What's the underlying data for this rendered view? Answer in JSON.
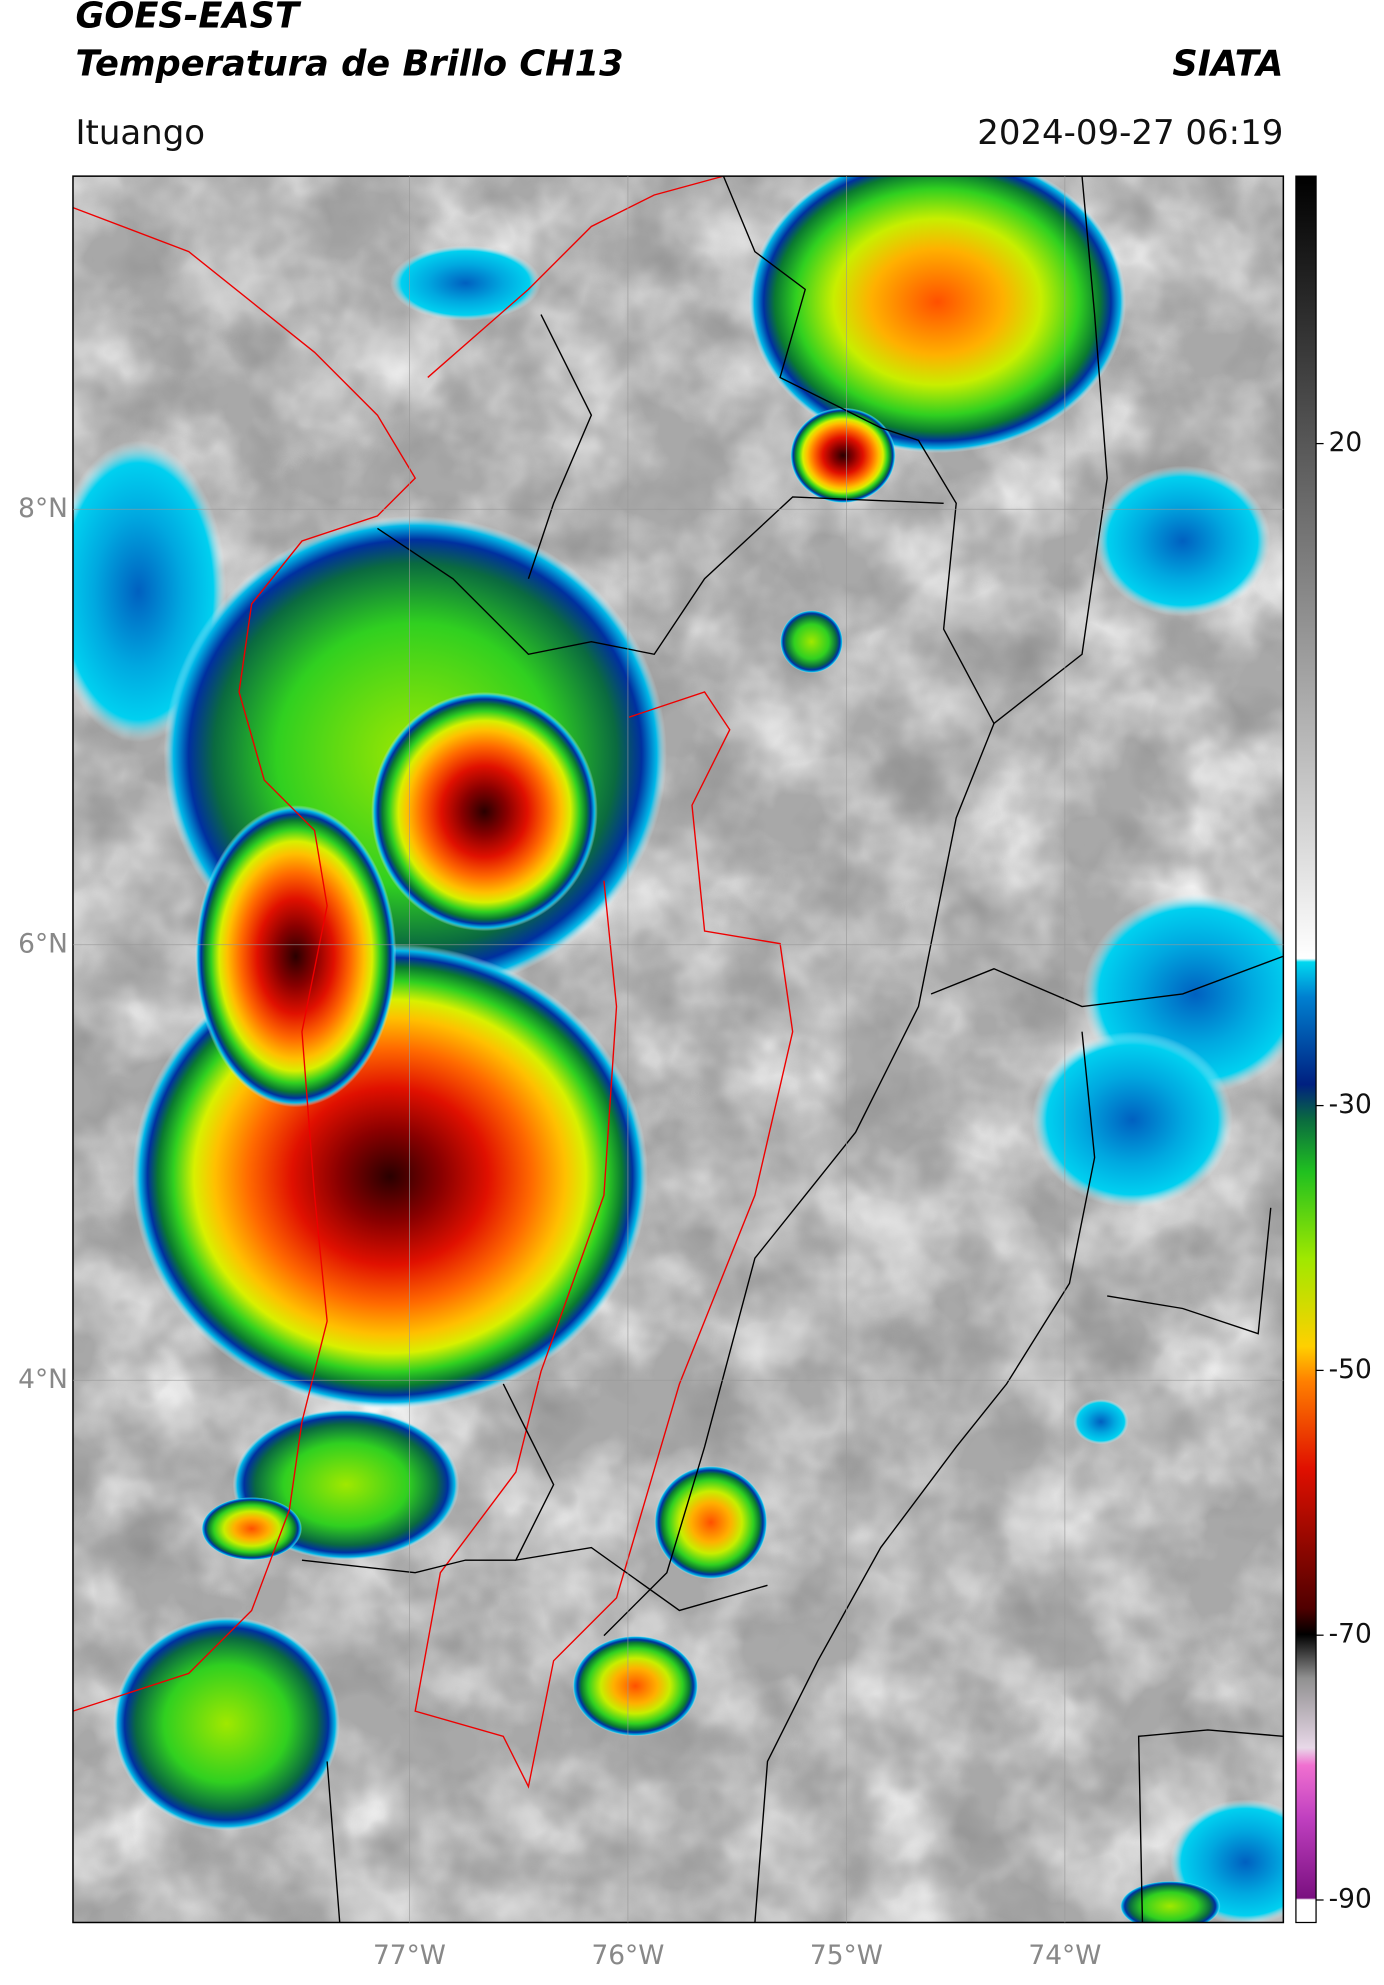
{
  "header": {
    "title": "GOES-EAST",
    "subtitle": "Temperatura de Brillo CH13",
    "organization": "SIATA",
    "location": "Ituango",
    "datetime": "2024-09-27 06:19"
  },
  "map": {
    "xlim": [
      -78.54,
      -73.0
    ],
    "ylim": [
      1.51,
      9.53
    ],
    "xticks": [
      {
        "value": -77,
        "label": "77°W"
      },
      {
        "value": -76,
        "label": "76°W"
      },
      {
        "value": -75,
        "label": "75°W"
      },
      {
        "value": -74,
        "label": "74°W"
      }
    ],
    "yticks": [
      {
        "value": 8,
        "label": "8°N"
      },
      {
        "value": 6,
        "label": "6°N"
      },
      {
        "value": 4,
        "label": "4°N"
      }
    ],
    "grid": true
  },
  "colorbar": {
    "lim": [
      -91.7,
      40.2
    ],
    "ticks": [
      20,
      -30,
      -50,
      -70,
      -90
    ]
  }
}
